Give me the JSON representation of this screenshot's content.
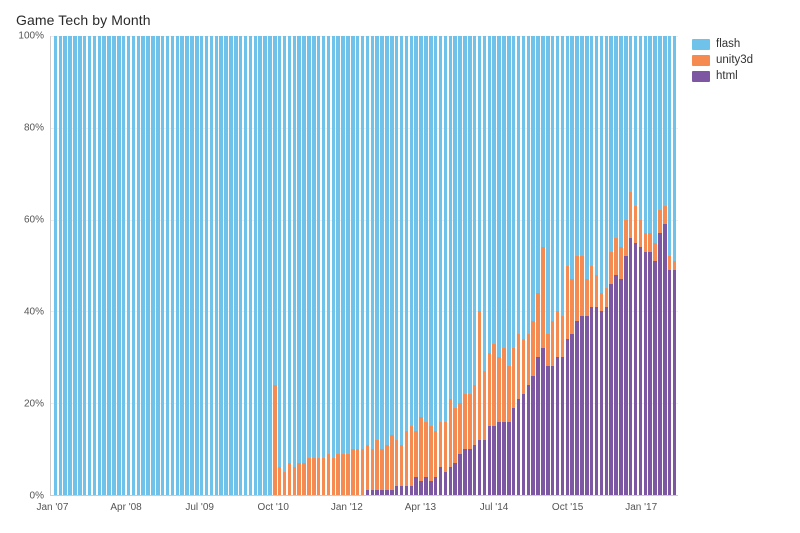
{
  "title": "Game Tech by Month",
  "chart": {
    "type": "stacked-bar-100",
    "background_color": "#ffffff",
    "grid_color": "#eeeeee",
    "axis_color": "#cccccc",
    "text_color": "#555555",
    "title_fontsize": 14,
    "label_fontsize": 10,
    "y": {
      "min": 0,
      "max": 100,
      "ticks": [
        0,
        20,
        40,
        60,
        80,
        100
      ],
      "tick_labels": [
        "0%",
        "20%",
        "40%",
        "60%",
        "80%",
        "100%"
      ]
    },
    "x": {
      "tick_indices": [
        0,
        15,
        30,
        45,
        60,
        75,
        90,
        105,
        120
      ],
      "tick_labels": [
        "Jan '07",
        "Apr '08",
        "Jul '09",
        "Oct '10",
        "Jan '12",
        "Apr '13",
        "Jul '14",
        "Oct '15",
        "Jan '17"
      ]
    },
    "series": [
      {
        "key": "flash",
        "label": "flash",
        "color": "#6fc3ea"
      },
      {
        "key": "unity3d",
        "label": "unity3d",
        "color": "#f58b51"
      },
      {
        "key": "html",
        "label": "html",
        "color": "#7e57a3"
      }
    ],
    "stack_order": [
      "html",
      "unity3d",
      "flash"
    ],
    "bar_count": 128,
    "values": {
      "flash": [
        100,
        100,
        100,
        100,
        100,
        100,
        100,
        100,
        100,
        100,
        100,
        100,
        100,
        100,
        100,
        100,
        100,
        100,
        100,
        100,
        100,
        100,
        100,
        100,
        100,
        100,
        100,
        100,
        100,
        100,
        100,
        100,
        100,
        100,
        100,
        100,
        100,
        100,
        100,
        100,
        100,
        100,
        100,
        100,
        100,
        76,
        94,
        95,
        93,
        94,
        93,
        93,
        92,
        92,
        92,
        92,
        91,
        92,
        91,
        91,
        91,
        90,
        90,
        90,
        89,
        90,
        88,
        90,
        89,
        87,
        88,
        89,
        86,
        85,
        86,
        83,
        84,
        85,
        86,
        84,
        84,
        79,
        81,
        80,
        78,
        78,
        76,
        60,
        73,
        69,
        67,
        70,
        68,
        72,
        68,
        65,
        66,
        65,
        62,
        56,
        46,
        65,
        62,
        60,
        61,
        50,
        53,
        48,
        48,
        53,
        50,
        52,
        56,
        55,
        47,
        44,
        46,
        40,
        34,
        37,
        40,
        43,
        43,
        45,
        38,
        37,
        48,
        49
      ],
      "unity3d": [
        0,
        0,
        0,
        0,
        0,
        0,
        0,
        0,
        0,
        0,
        0,
        0,
        0,
        0,
        0,
        0,
        0,
        0,
        0,
        0,
        0,
        0,
        0,
        0,
        0,
        0,
        0,
        0,
        0,
        0,
        0,
        0,
        0,
        0,
        0,
        0,
        0,
        0,
        0,
        0,
        0,
        0,
        0,
        0,
        0,
        24,
        6,
        5,
        7,
        6,
        7,
        7,
        8,
        8,
        8,
        8,
        9,
        8,
        9,
        9,
        9,
        10,
        10,
        10,
        10,
        9,
        11,
        9,
        10,
        12,
        10,
        9,
        12,
        13,
        10,
        14,
        12,
        12,
        10,
        10,
        11,
        15,
        12,
        11,
        12,
        12,
        13,
        28,
        15,
        16,
        18,
        14,
        16,
        12,
        13,
        14,
        12,
        11,
        12,
        14,
        22,
        7,
        10,
        10,
        9,
        16,
        12,
        14,
        13,
        8,
        9,
        7,
        4,
        4,
        7,
        8,
        7,
        8,
        10,
        8,
        6,
        4,
        4,
        4,
        5,
        4,
        3,
        2
      ],
      "html": [
        0,
        0,
        0,
        0,
        0,
        0,
        0,
        0,
        0,
        0,
        0,
        0,
        0,
        0,
        0,
        0,
        0,
        0,
        0,
        0,
        0,
        0,
        0,
        0,
        0,
        0,
        0,
        0,
        0,
        0,
        0,
        0,
        0,
        0,
        0,
        0,
        0,
        0,
        0,
        0,
        0,
        0,
        0,
        0,
        0,
        0,
        0,
        0,
        0,
        0,
        0,
        0,
        0,
        0,
        0,
        0,
        0,
        0,
        0,
        0,
        0,
        0,
        0,
        0,
        1,
        1,
        1,
        1,
        1,
        1,
        2,
        2,
        2,
        2,
        4,
        3,
        4,
        3,
        4,
        6,
        5,
        6,
        7,
        9,
        10,
        10,
        11,
        12,
        12,
        15,
        15,
        16,
        16,
        16,
        19,
        21,
        22,
        24,
        26,
        30,
        32,
        28,
        28,
        30,
        30,
        34,
        35,
        38,
        39,
        39,
        41,
        41,
        40,
        41,
        46,
        48,
        47,
        52,
        56,
        55,
        54,
        53,
        53,
        51,
        57,
        59,
        49,
        49
      ]
    }
  },
  "legend": {
    "position": "right-top",
    "items": [
      {
        "label": "flash",
        "color": "#6fc3ea"
      },
      {
        "label": "unity3d",
        "color": "#f58b51"
      },
      {
        "label": "html",
        "color": "#7e57a3"
      }
    ]
  }
}
